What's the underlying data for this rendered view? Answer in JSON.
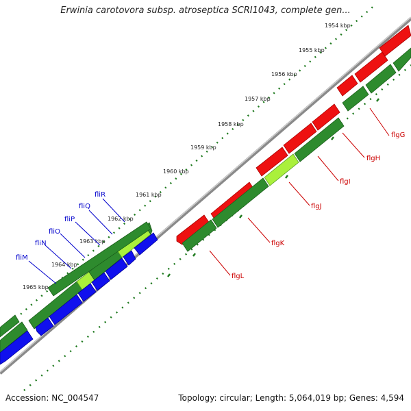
{
  "title": "Erwinia carotovora subsp. atroseptica SCRI1043, complete gen...",
  "accession": "Accession: NC_004547",
  "summary": "Topology: circular; Length: 5,064,019 bp; Genes: 4,594",
  "ticks": [
    "1954 kbp",
    "1955 kbp",
    "1956 kbp",
    "1957 kbp",
    "1958 kbp",
    "1959 kbp",
    "1960 kbp",
    "1961 kbp",
    "1962 kbp",
    "1963 kbp",
    "1964 kbp",
    "1965 kbp"
  ],
  "genes_red": [
    "flgG",
    "flgH",
    "flgI",
    "flgJ",
    "flgK",
    "flgL"
  ],
  "genes_blue": [
    "fliR",
    "fliQ",
    "fliP",
    "fliO",
    "fliN",
    "fliM"
  ],
  "colors": {
    "forward_gene": "#ee1111",
    "reverse_gene": "#1010ee",
    "cds": "#2e8b2e",
    "highlight": "#aaf03c",
    "backbone": "#888888",
    "tick": "#1f7a1f",
    "label_red": "#cc0000",
    "label_blue": "#0000cc"
  }
}
